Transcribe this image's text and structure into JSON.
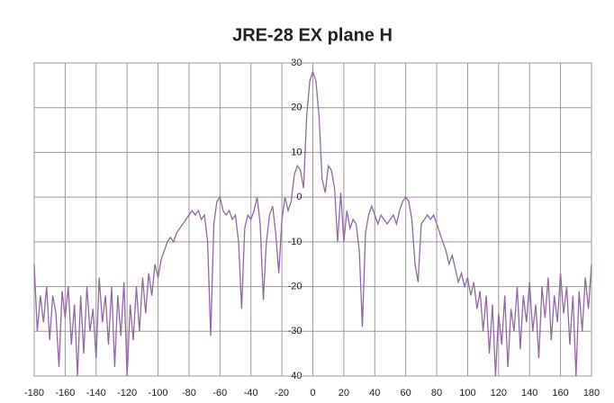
{
  "chart_data": {
    "type": "line",
    "title": "JRE-28 EX plane H",
    "x": [
      -180,
      -178,
      -176,
      -174,
      -172,
      -170,
      -168,
      -166,
      -164,
      -162,
      -160,
      -158,
      -156,
      -154,
      -152,
      -150,
      -148,
      -146,
      -144,
      -142,
      -140,
      -138,
      -136,
      -134,
      -132,
      -130,
      -128,
      -126,
      -124,
      -122,
      -120,
      -118,
      -116,
      -114,
      -112,
      -110,
      -108,
      -106,
      -104,
      -102,
      -100,
      -98,
      -96,
      -94,
      -92,
      -90,
      -88,
      -86,
      -84,
      -82,
      -80,
      -78,
      -76,
      -74,
      -72,
      -70,
      -68,
      -66,
      -64,
      -62,
      -60,
      -58,
      -56,
      -54,
      -52,
      -50,
      -48,
      -46,
      -44,
      -42,
      -40,
      -38,
      -36,
      -34,
      -32,
      -30,
      -28,
      -26,
      -24,
      -22,
      -20,
      -18,
      -16,
      -14,
      -12,
      -10,
      -8,
      -6,
      -4,
      -2,
      0,
      2,
      4,
      6,
      8,
      10,
      12,
      14,
      16,
      18,
      20,
      22,
      24,
      26,
      28,
      30,
      32,
      34,
      36,
      38,
      40,
      42,
      44,
      46,
      48,
      50,
      52,
      54,
      56,
      58,
      60,
      62,
      64,
      66,
      68,
      70,
      72,
      74,
      76,
      78,
      80,
      82,
      84,
      86,
      88,
      90,
      92,
      94,
      96,
      98,
      100,
      102,
      104,
      106,
      108,
      110,
      112,
      114,
      116,
      118,
      120,
      122,
      124,
      126,
      128,
      130,
      132,
      134,
      136,
      138,
      140,
      142,
      144,
      146,
      148,
      150,
      152,
      154,
      156,
      158,
      160,
      162,
      164,
      166,
      168,
      170,
      172,
      174,
      176,
      178,
      180
    ],
    "series": [
      {
        "name": "H",
        "color": "#9467a6",
        "values": [
          -15,
          -30,
          -22,
          -28,
          -20,
          -32,
          -22,
          -26,
          -38,
          -21,
          -27,
          -20,
          -33,
          -24,
          -40,
          -22,
          -35,
          -20,
          -30,
          -25,
          -36,
          -18,
          -28,
          -22,
          -33,
          -20,
          -38,
          -22,
          -31,
          -19,
          -40,
          -24,
          -32,
          -20,
          -30,
          -18,
          -26,
          -17,
          -22,
          -15,
          -18,
          -14,
          -12,
          -10,
          -9,
          -10,
          -8,
          -7,
          -6,
          -5,
          -4,
          -3,
          -4,
          -3,
          -5,
          -4,
          -10,
          -31,
          -6,
          -1,
          0,
          -3,
          -4,
          -3,
          -5,
          -4,
          -10,
          -25,
          -7,
          -4,
          -5,
          -3,
          0,
          -6,
          -23,
          -10,
          -4,
          -2,
          -8,
          -17,
          -5,
          0,
          -3,
          -1,
          5,
          7,
          6,
          2,
          18,
          26,
          28,
          26,
          18,
          4,
          1,
          7,
          6,
          2,
          -10,
          1,
          -10,
          -3,
          -7,
          -5,
          -6,
          -12,
          -29,
          -8,
          -4,
          -2,
          -4,
          -6,
          -4,
          -5,
          -6,
          -5,
          -4,
          -6,
          -3,
          -1,
          0,
          -1,
          -5,
          -15,
          -19,
          -6,
          -5,
          -4,
          -5,
          -4,
          -6,
          -8,
          -10,
          -12,
          -15,
          -13,
          -16,
          -19,
          -17,
          -20,
          -18,
          -22,
          -19,
          -25,
          -21,
          -30,
          -22,
          -35,
          -24,
          -40,
          -26,
          -33,
          -22,
          -38,
          -25,
          -30,
          -20,
          -34,
          -22,
          -28,
          -19,
          -30,
          -24,
          -36,
          -20,
          -27,
          -18,
          -32,
          -22,
          -28,
          -17,
          -26,
          -20,
          -33,
          -22,
          -40,
          -21,
          -30,
          -18,
          -25,
          -15
        ]
      }
    ],
    "xlim": [
      -180,
      180
    ],
    "ylim": [
      -40,
      30
    ],
    "xticks": [
      -180,
      -160,
      -140,
      -120,
      -100,
      -80,
      -60,
      -40,
      -20,
      0,
      20,
      40,
      60,
      80,
      100,
      120,
      140,
      160,
      180
    ],
    "yticks": [
      -40,
      -30,
      -20,
      -10,
      0,
      10,
      20,
      30
    ],
    "grid": true
  }
}
